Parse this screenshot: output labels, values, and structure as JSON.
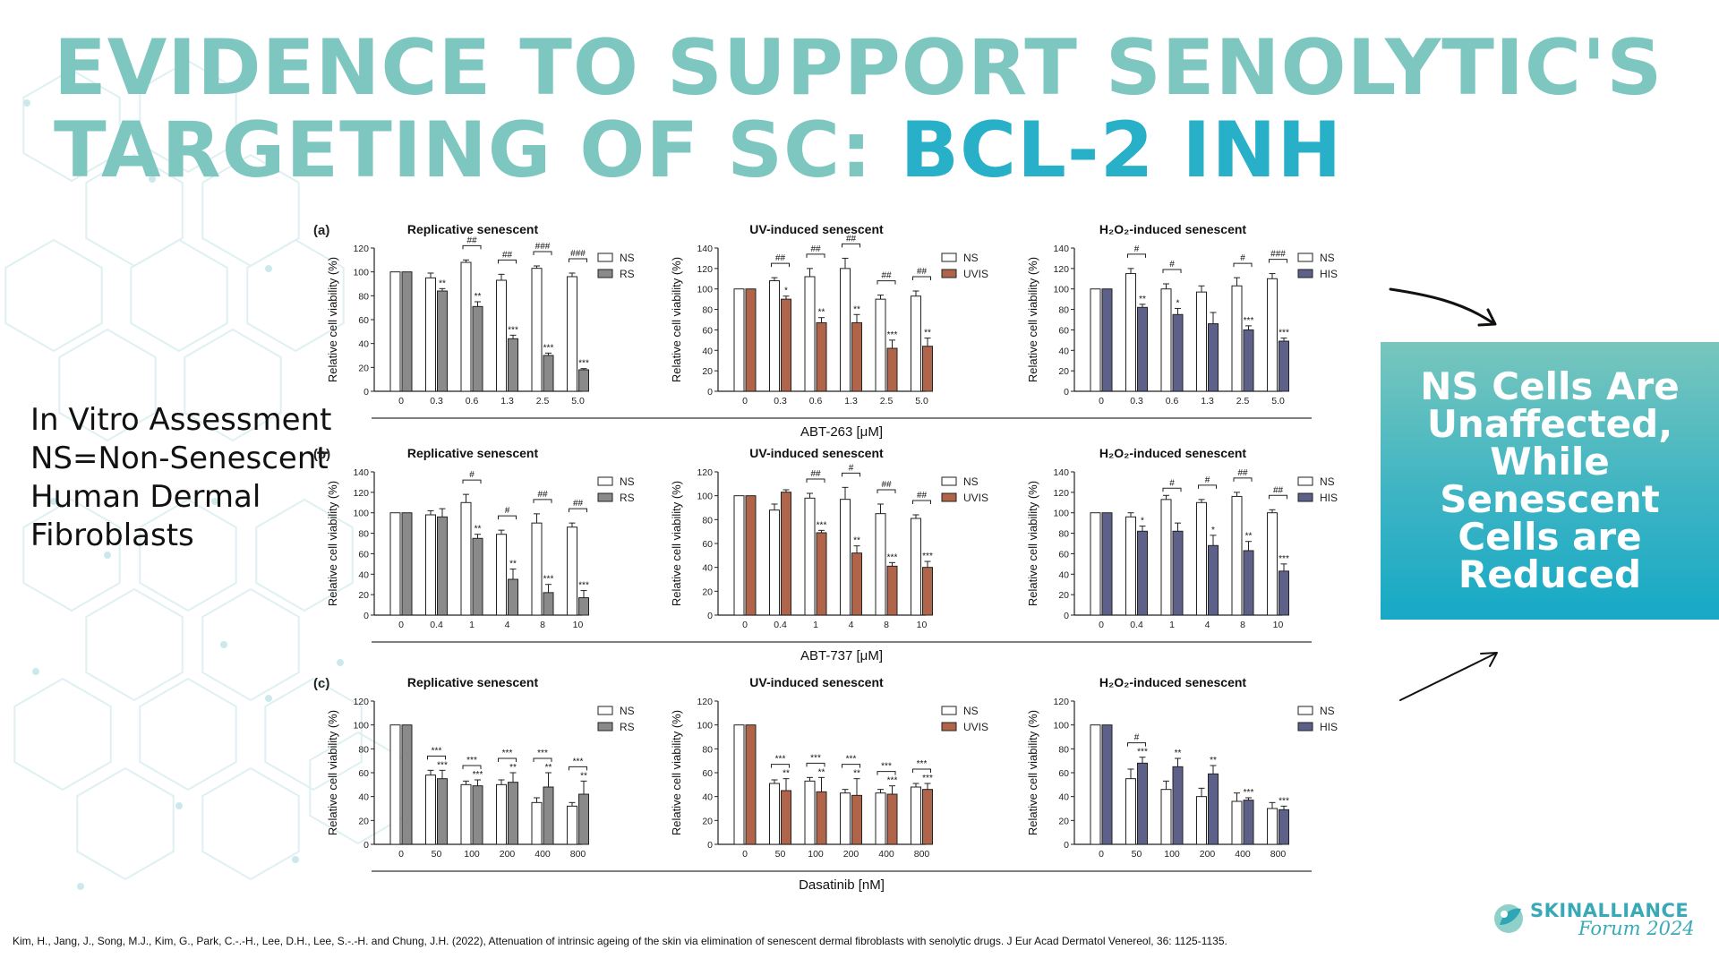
{
  "slide": {
    "title_part1": "EVIDENCE TO SUPPORT SENOLYTIC'S TARGETING OF SC: ",
    "title_part2": "BCL-2 INH",
    "description_lines": [
      "In Vitro Assessment",
      "NS=Non-Senescent",
      "Human Dermal",
      "Fibroblasts"
    ],
    "callout": "NS Cells Are Unaffected, While Senescent Cells are Reduced",
    "citation": "Kim, H., Jang, J., Song, M.J., Kim, G., Park, C.-.-H., Lee, D.H., Lee, S.-.-H. and Chung, J.H. (2022), Attenuation of intrinsic ageing of the skin via elimination of senescent dermal fibroblasts with senolytic drugs. J Eur Acad Dermatol Venereol, 36: 1125-1135.",
    "logo_name": "SKINALLIANCE",
    "logo_sub": "Forum 2024"
  },
  "colors": {
    "title_light": "#7ec6c0",
    "title_accent": "#27b0c8",
    "ns_fill": "#ffffff",
    "rs_fill": "#8a8a8a",
    "uvis_fill": "#b0654b",
    "his_fill": "#5d6089",
    "callout_gradient": [
      "#78c6bd",
      "#16a9c6"
    ]
  },
  "figure": {
    "y_axis_label": "Relative cell viability (%)",
    "panel_labels": [
      "(a)",
      "(b)",
      "(c)"
    ],
    "drug_labels": [
      "ABT-263 [μM]",
      "ABT-737 [μM]",
      "Dasatinib [nM]"
    ]
  },
  "chart_data": [
    {
      "type": "bar",
      "panel": "a",
      "title": "Replicative senescent",
      "ylabel": "Relative cell viability (%)",
      "ylim": [
        0,
        120
      ],
      "yticks": [
        0,
        20,
        40,
        60,
        80,
        100,
        120
      ],
      "categories": [
        "0",
        "0.3",
        "0.6",
        "1.3",
        "2.5",
        "5.0"
      ],
      "series": [
        {
          "name": "NS",
          "values": [
            100,
            95,
            108,
            93,
            103,
            96
          ],
          "errors": [
            0,
            4,
            2,
            5,
            2,
            3
          ]
        },
        {
          "name": "RS",
          "values": [
            100,
            84,
            71,
            44,
            30,
            18
          ],
          "errors": [
            0,
            2,
            4,
            3,
            2,
            1
          ]
        }
      ],
      "ns_marks": [
        "",
        "",
        "##",
        "##",
        "###",
        "###"
      ],
      "senescent_marks": [
        "",
        "**",
        "**",
        "***",
        "***",
        "***"
      ]
    },
    {
      "type": "bar",
      "panel": "a",
      "title": "UV-induced senescent",
      "ylabel": "Relative cell viability (%)",
      "ylim": [
        0,
        140
      ],
      "yticks": [
        0,
        20,
        40,
        60,
        80,
        100,
        120,
        140
      ],
      "categories": [
        "0",
        "0.3",
        "0.6",
        "1.3",
        "2.5",
        "5.0"
      ],
      "series": [
        {
          "name": "NS",
          "values": [
            100,
            108,
            112,
            120,
            90,
            93
          ],
          "errors": [
            0,
            3,
            8,
            10,
            4,
            5
          ]
        },
        {
          "name": "UVIS",
          "values": [
            100,
            90,
            67,
            67,
            42,
            44
          ],
          "errors": [
            0,
            3,
            5,
            8,
            8,
            8
          ]
        }
      ],
      "ns_marks": [
        "",
        "##",
        "##",
        "##",
        "##",
        "##"
      ],
      "senescent_marks": [
        "",
        "*",
        "**",
        "**",
        "***",
        "**"
      ]
    },
    {
      "type": "bar",
      "panel": "a",
      "title": "H₂O₂-induced senescent",
      "ylabel": "Relative cell viability (%)",
      "ylim": [
        0,
        140
      ],
      "yticks": [
        0,
        20,
        40,
        60,
        80,
        100,
        120,
        140
      ],
      "categories": [
        "0",
        "0.3",
        "0.6",
        "1.3",
        "2.5",
        "5.0"
      ],
      "series": [
        {
          "name": "NS",
          "values": [
            100,
            115,
            100,
            97,
            103,
            110
          ],
          "errors": [
            0,
            5,
            5,
            6,
            8,
            5
          ]
        },
        {
          "name": "HIS",
          "values": [
            100,
            82,
            75,
            66,
            60,
            49
          ],
          "errors": [
            0,
            3,
            6,
            11,
            4,
            3
          ]
        }
      ],
      "ns_marks": [
        "",
        "#",
        "#",
        "",
        "#",
        "###"
      ],
      "senescent_marks": [
        "",
        "**",
        "*",
        "",
        "***",
        "***"
      ]
    },
    {
      "type": "bar",
      "panel": "b",
      "title": "Replicative senescent",
      "ylabel": "Relative cell viability (%)",
      "ylim": [
        0,
        140
      ],
      "yticks": [
        0,
        20,
        40,
        60,
        80,
        100,
        120,
        140
      ],
      "categories": [
        "0",
        "0.4",
        "1",
        "4",
        "8",
        "10"
      ],
      "series": [
        {
          "name": "NS",
          "values": [
            100,
            98,
            110,
            79,
            90,
            86
          ],
          "errors": [
            0,
            4,
            8,
            4,
            9,
            4
          ]
        },
        {
          "name": "RS",
          "values": [
            100,
            96,
            75,
            35,
            22,
            17
          ],
          "errors": [
            0,
            8,
            4,
            10,
            8,
            7
          ]
        }
      ],
      "ns_marks": [
        "",
        "",
        "#",
        "#",
        "##",
        "##"
      ],
      "senescent_marks": [
        "",
        "",
        "**",
        "**",
        "***",
        "***"
      ]
    },
    {
      "type": "bar",
      "panel": "b",
      "title": "UV-induced senescent",
      "ylabel": "Relative cell viability (%)",
      "ylim": [
        0,
        120
      ],
      "yticks": [
        0,
        20,
        40,
        60,
        80,
        100,
        120
      ],
      "categories": [
        "0",
        "0.4",
        "1",
        "4",
        "8",
        "10"
      ],
      "series": [
        {
          "name": "NS",
          "values": [
            100,
            88,
            98,
            97,
            85,
            81
          ],
          "errors": [
            0,
            5,
            4,
            10,
            8,
            3
          ]
        },
        {
          "name": "UVIS",
          "values": [
            100,
            103,
            69,
            52,
            41,
            40
          ],
          "errors": [
            0,
            2,
            2,
            6,
            3,
            5
          ]
        }
      ],
      "ns_marks": [
        "",
        "",
        "##",
        "#",
        "##",
        "##"
      ],
      "senescent_marks": [
        "",
        "",
        "***",
        "**",
        "***",
        "***"
      ]
    },
    {
      "type": "bar",
      "panel": "b",
      "title": "H₂O₂-induced senescent",
      "ylabel": "Relative cell viability (%)",
      "ylim": [
        0,
        140
      ],
      "yticks": [
        0,
        20,
        40,
        60,
        80,
        100,
        120,
        140
      ],
      "categories": [
        "0",
        "0.4",
        "1",
        "4",
        "8",
        "10"
      ],
      "series": [
        {
          "name": "NS",
          "values": [
            100,
            96,
            113,
            110,
            116,
            100
          ],
          "errors": [
            0,
            4,
            4,
            3,
            4,
            3
          ]
        },
        {
          "name": "HIS",
          "values": [
            100,
            82,
            82,
            68,
            63,
            43
          ],
          "errors": [
            0,
            5,
            8,
            10,
            9,
            7
          ]
        }
      ],
      "ns_marks": [
        "",
        "",
        "#",
        "#",
        "##",
        "##"
      ],
      "senescent_marks": [
        "",
        "*",
        "",
        "*",
        "**",
        "***"
      ]
    },
    {
      "type": "bar",
      "panel": "c",
      "title": "Replicative senescent",
      "ylabel": "Relative cell viability (%)",
      "ylim": [
        0,
        120
      ],
      "yticks": [
        0,
        20,
        40,
        60,
        80,
        100,
        120
      ],
      "categories": [
        "0",
        "50",
        "100",
        "200",
        "400",
        "800"
      ],
      "series": [
        {
          "name": "NS",
          "values": [
            100,
            58,
            50,
            50,
            35,
            32
          ],
          "errors": [
            0,
            4,
            3,
            4,
            4,
            3
          ]
        },
        {
          "name": "RS",
          "values": [
            100,
            55,
            49,
            52,
            48,
            42
          ],
          "errors": [
            0,
            7,
            5,
            8,
            12,
            11
          ]
        }
      ],
      "ns_marks": [
        "",
        "***",
        "***",
        "***",
        "***",
        "***"
      ],
      "senescent_marks": [
        "",
        "***",
        "***",
        "**",
        "**",
        "**"
      ]
    },
    {
      "type": "bar",
      "panel": "c",
      "title": "UV-induced senescent",
      "ylabel": "Relative cell viability (%)",
      "ylim": [
        0,
        120
      ],
      "yticks": [
        0,
        20,
        40,
        60,
        80,
        100,
        120
      ],
      "categories": [
        "0",
        "50",
        "100",
        "200",
        "400",
        "800"
      ],
      "series": [
        {
          "name": "NS",
          "values": [
            100,
            51,
            53,
            43,
            43,
            48
          ],
          "errors": [
            0,
            3,
            3,
            3,
            3,
            3
          ]
        },
        {
          "name": "UVIS",
          "values": [
            100,
            45,
            44,
            41,
            42,
            46
          ],
          "errors": [
            0,
            10,
            12,
            14,
            7,
            5
          ]
        }
      ],
      "ns_marks": [
        "",
        "***",
        "***",
        "***",
        "***",
        "***"
      ],
      "senescent_marks": [
        "",
        "**",
        "**",
        "**",
        "***",
        "***"
      ]
    },
    {
      "type": "bar",
      "panel": "c",
      "title": "H₂O₂-induced senescent",
      "ylabel": "Relative cell viability (%)",
      "ylim": [
        0,
        120
      ],
      "yticks": [
        0,
        20,
        40,
        60,
        80,
        100,
        120
      ],
      "categories": [
        "0",
        "50",
        "100",
        "200",
        "400",
        "800"
      ],
      "series": [
        {
          "name": "NS",
          "values": [
            100,
            55,
            46,
            40,
            36,
            30
          ],
          "errors": [
            0,
            8,
            7,
            7,
            7,
            5
          ]
        },
        {
          "name": "HIS",
          "values": [
            100,
            68,
            65,
            59,
            37,
            29
          ],
          "errors": [
            0,
            5,
            7,
            7,
            2,
            3
          ]
        }
      ],
      "ns_marks": [
        "",
        "#",
        "",
        "",
        "",
        ""
      ],
      "senescent_marks": [
        "",
        "***",
        "**",
        "**",
        "***",
        "***"
      ]
    }
  ]
}
